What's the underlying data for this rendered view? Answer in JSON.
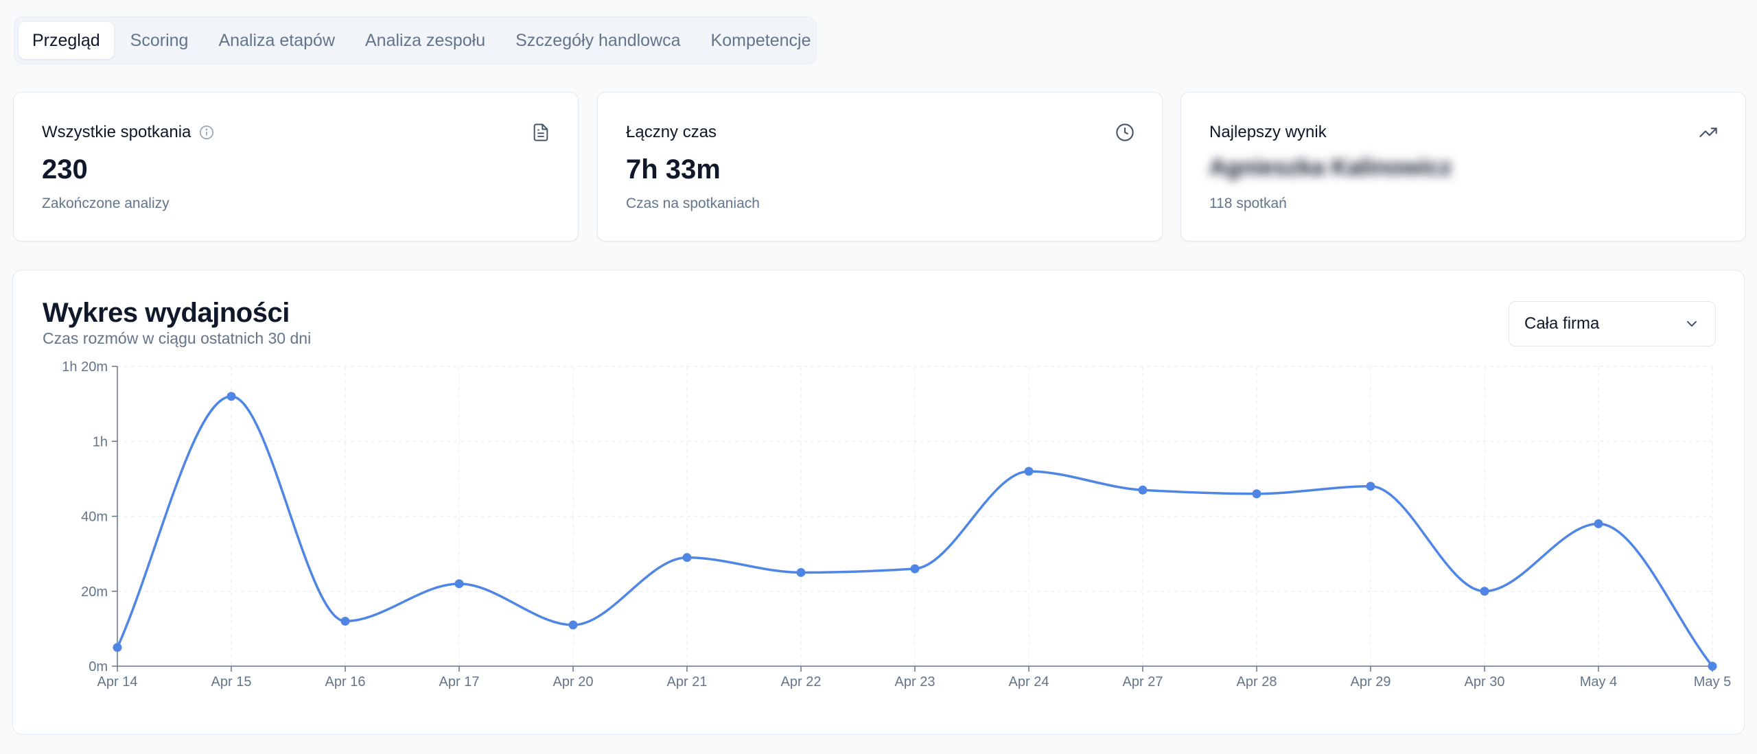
{
  "tabs": [
    {
      "label": "Przegląd",
      "active": true
    },
    {
      "label": "Scoring",
      "active": false
    },
    {
      "label": "Analiza etapów",
      "active": false
    },
    {
      "label": "Analiza zespołu",
      "active": false
    },
    {
      "label": "Szczegóły handlowca",
      "active": false
    },
    {
      "label": "Kompetencje",
      "active": false
    }
  ],
  "cards": {
    "meetings": {
      "label": "Wszystkie spotkania",
      "value": "230",
      "sub": "Zakończone analizy",
      "icon": "document-icon"
    },
    "time": {
      "label": "Łączny czas",
      "value": "7h 33m",
      "sub": "Czas na spotkaniach",
      "icon": "clock-icon"
    },
    "best": {
      "label": "Najlepszy wynik",
      "value": "Agnieszka Kalinowicz",
      "sub": "118 spotkań",
      "icon": "trending-up-icon"
    }
  },
  "panel": {
    "title": "Wykres wydajności",
    "subtitle": "Czas rozmów w ciągu ostatnich 30 dni",
    "select_value": "Cała firma"
  },
  "colors": {
    "accent": "#4f86e6",
    "grid": "#eef1f5",
    "axis": "#64748b"
  },
  "chart_data": {
    "type": "line",
    "categories": [
      "Apr 14",
      "Apr 15",
      "Apr 16",
      "Apr 17",
      "Apr 20",
      "Apr 21",
      "Apr 22",
      "Apr 23",
      "Apr 24",
      "Apr 27",
      "Apr 28",
      "Apr 29",
      "Apr 30",
      "May 4",
      "May 5"
    ],
    "series": [
      {
        "values": [
          5,
          72,
          12,
          22,
          11,
          29,
          25,
          26,
          52,
          47,
          46,
          48,
          20,
          38,
          0
        ]
      }
    ],
    "yticks": [
      {
        "value": 0,
        "label": "0m"
      },
      {
        "value": 20,
        "label": "20m"
      },
      {
        "value": 40,
        "label": "40m"
      },
      {
        "value": 60,
        "label": "1h"
      },
      {
        "value": 80,
        "label": "1h 20m"
      }
    ],
    "ylim": [
      0,
      80
    ],
    "grid": true,
    "legend": "none"
  }
}
